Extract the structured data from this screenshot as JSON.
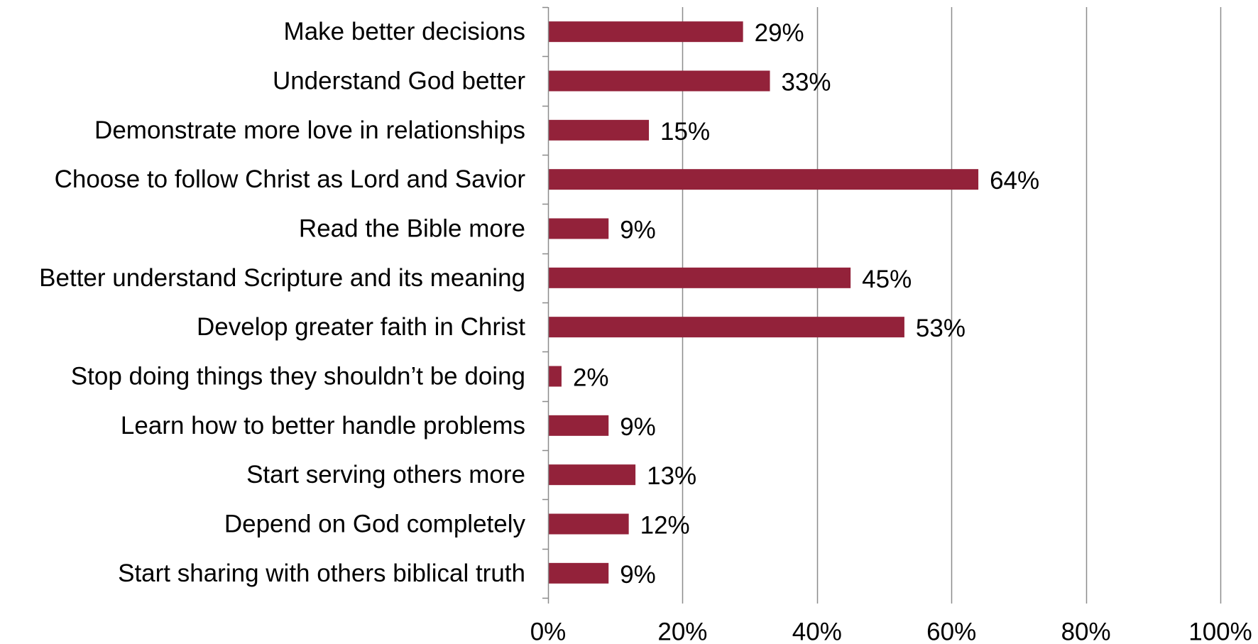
{
  "chart_data": {
    "type": "bar",
    "orientation": "horizontal",
    "categories": [
      "Make better decisions",
      "Understand God better",
      "Demonstrate more love in relationships",
      "Choose to follow Christ as Lord and Savior",
      "Read the Bible more",
      "Better understand Scripture and its meaning",
      "Develop greater faith in Christ",
      "Stop doing things they shouldn’t be doing",
      "Learn how to better handle problems",
      "Start serving others more",
      "Depend on God completely",
      "Start sharing with others biblical truth"
    ],
    "values": [
      29,
      33,
      15,
      64,
      9,
      45,
      53,
      2,
      9,
      13,
      12,
      9
    ],
    "data_labels": [
      "29%",
      "33%",
      "15%",
      "64%",
      "9%",
      "45%",
      "53%",
      "2%",
      "9%",
      "13%",
      "12%",
      "9%"
    ],
    "xlim": [
      0,
      100
    ],
    "x_ticks": [
      0,
      20,
      40,
      60,
      80,
      100
    ],
    "x_tick_labels": [
      "0%",
      "20%",
      "40%",
      "60%",
      "80%",
      "100%"
    ],
    "title": "",
    "xlabel": "",
    "ylabel": "",
    "grid": "vertical",
    "legend": "none",
    "colors": {
      "bar": "#93223A",
      "grid": "#8C8C8C",
      "axis": "#8C8C8C",
      "text": "#000000"
    }
  }
}
